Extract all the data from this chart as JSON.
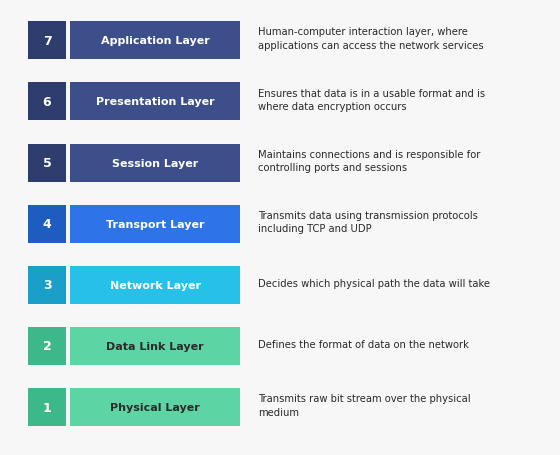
{
  "layers": [
    {
      "number": 7,
      "name": "Application Layer",
      "description": "Human-computer interaction layer, where\napplications can access the network services",
      "num_box_color": "#2e3d6e",
      "label_box_color": "#3d4f8a",
      "text_color": "#ffffff",
      "desc_bold": false
    },
    {
      "number": 6,
      "name": "Presentation Layer",
      "description": "Ensures that data is in a usable format and is\nwhere data encryption occurs",
      "num_box_color": "#2e3d6e",
      "label_box_color": "#3d4f8a",
      "text_color": "#ffffff",
      "desc_bold": false
    },
    {
      "number": 5,
      "name": "Session Layer",
      "description": "Maintains connections and is responsible for\ncontrolling ports and sessions",
      "num_box_color": "#2e3d6e",
      "label_box_color": "#3d4f8a",
      "text_color": "#ffffff",
      "desc_bold": false
    },
    {
      "number": 4,
      "name": "Transport Layer",
      "description": "Transmits data using transmission protocols\nincluding TCP and UDP",
      "num_box_color": "#1e5cc0",
      "label_box_color": "#2e74e8",
      "text_color": "#ffffff",
      "desc_bold": false
    },
    {
      "number": 3,
      "name": "Network Layer",
      "description": "Decides which physical path the data will take",
      "num_box_color": "#1aa0c8",
      "label_box_color": "#26c0e8",
      "text_color": "#ffffff",
      "desc_bold": false
    },
    {
      "number": 2,
      "name": "Data Link Layer",
      "description": "Defines the format of data on the network",
      "num_box_color": "#3db88a",
      "label_box_color": "#5dd4a4",
      "text_color": "#2a2a2a",
      "desc_bold": false
    },
    {
      "number": 1,
      "name": "Physical Layer",
      "description": "Transmits raw bit stream over the physical\nmedium",
      "num_box_color": "#3db88a",
      "label_box_color": "#5dd4a4",
      "text_color": "#2a2a2a",
      "desc_bold": false
    }
  ],
  "background_color": "#f7f7f7",
  "desc_text_color": "#2a2a2a",
  "fig_width": 5.6,
  "fig_height": 4.56,
  "dpi": 100
}
